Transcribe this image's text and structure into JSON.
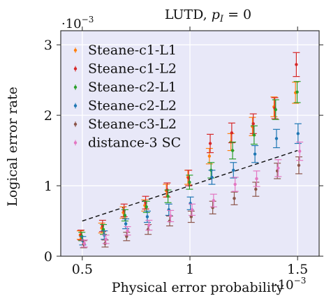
{
  "chart_data": {
    "type": "scatter",
    "title_text": "LUTD, ",
    "title_math": "p",
    "title_sub": "I",
    "title_rest": " = 0",
    "xlabel": "Physical error probability",
    "ylabel": "Logical error rate",
    "x_scale_label": "·10",
    "x_scale_exp": "−3",
    "y_scale_label": "·10",
    "y_scale_exp": "−3",
    "xlim": [
      0.4,
      1.6
    ],
    "ylim": [
      0,
      3.2
    ],
    "x_ticks": [
      {
        "v": 0.5,
        "label": "0.5"
      },
      {
        "v": 1.0,
        "label": "1"
      },
      {
        "v": 1.5,
        "label": "1.5"
      }
    ],
    "y_ticks": [
      {
        "v": 0,
        "label": "0"
      },
      {
        "v": 1,
        "label": "1"
      },
      {
        "v": 2,
        "label": "2"
      },
      {
        "v": 3,
        "label": "3"
      }
    ],
    "legend_position": "top-left",
    "grid": true,
    "colors": {
      "plot_background": "#e8e8f8",
      "grid": "#ffffff",
      "fit_line": "#111111"
    },
    "series": [
      {
        "name": "Steane-c1-L1",
        "color": "#ff7f0e",
        "x": [
          0.5,
          0.6,
          0.7,
          0.8,
          0.9,
          1.0,
          1.1,
          1.2,
          1.3,
          1.4,
          1.5
        ],
        "y": [
          0.3,
          0.4,
          0.62,
          0.72,
          0.93,
          1.12,
          1.42,
          1.62,
          1.84,
          2.12,
          2.32
        ],
        "err": [
          0.06,
          0.07,
          0.08,
          0.08,
          0.09,
          0.1,
          0.11,
          0.12,
          0.13,
          0.14,
          0.15
        ]
      },
      {
        "name": "Steane-c1-L2",
        "color": "#d62728",
        "x": [
          0.5,
          0.6,
          0.7,
          0.8,
          0.9,
          1.0,
          1.1,
          1.2,
          1.3,
          1.4,
          1.5
        ],
        "y": [
          0.3,
          0.43,
          0.65,
          0.76,
          0.94,
          1.11,
          1.6,
          1.75,
          1.88,
          2.1,
          2.72
        ],
        "err": [
          0.07,
          0.08,
          0.09,
          0.09,
          0.1,
          0.11,
          0.13,
          0.14,
          0.14,
          0.15,
          0.17
        ]
      },
      {
        "name": "Steane-c2-L1",
        "color": "#2ca02c",
        "x": [
          0.5,
          0.6,
          0.7,
          0.8,
          0.9,
          1.0,
          1.1,
          1.2,
          1.3,
          1.4,
          1.5
        ],
        "y": [
          0.28,
          0.38,
          0.58,
          0.7,
          0.85,
          1.05,
          1.22,
          1.5,
          1.72,
          2.08,
          2.33
        ],
        "err": [
          0.06,
          0.07,
          0.08,
          0.08,
          0.09,
          0.1,
          0.11,
          0.12,
          0.13,
          0.14,
          0.15
        ]
      },
      {
        "name": "Steane-c2-L2",
        "color": "#1f77b4",
        "x": [
          0.5,
          0.6,
          0.7,
          0.8,
          0.9,
          1.0,
          1.1,
          1.2,
          1.3,
          1.4,
          1.5
        ],
        "y": [
          0.22,
          0.3,
          0.46,
          0.56,
          0.66,
          0.75,
          1.12,
          1.22,
          1.45,
          1.67,
          1.74
        ],
        "err": [
          0.06,
          0.06,
          0.07,
          0.08,
          0.08,
          0.09,
          0.1,
          0.11,
          0.12,
          0.13,
          0.14
        ]
      },
      {
        "name": "Steane-c3-L2",
        "color": "#8c564b",
        "x": [
          0.5,
          0.6,
          0.7,
          0.8,
          0.9,
          1.0,
          1.1,
          1.2,
          1.3,
          1.4,
          1.5
        ],
        "y": [
          0.17,
          0.18,
          0.28,
          0.38,
          0.5,
          0.56,
          0.69,
          0.82,
          0.95,
          1.21,
          1.29
        ],
        "err": [
          0.05,
          0.05,
          0.06,
          0.07,
          0.07,
          0.08,
          0.09,
          0.09,
          0.1,
          0.11,
          0.12
        ]
      },
      {
        "name": "distance-3 SC",
        "color": "#e377c2",
        "x": [
          0.5,
          0.6,
          0.7,
          0.8,
          0.9,
          1.0,
          1.1,
          1.2,
          1.3,
          1.4,
          1.5
        ],
        "y": [
          0.18,
          0.24,
          0.36,
          0.44,
          0.57,
          0.66,
          0.79,
          1.02,
          1.1,
          1.25,
          1.49
        ],
        "err": [
          0.05,
          0.06,
          0.06,
          0.07,
          0.08,
          0.08,
          0.09,
          0.1,
          0.11,
          0.12,
          0.13
        ]
      }
    ],
    "fit_line": {
      "x": [
        0.5,
        1.5
      ],
      "y": [
        0.5,
        1.5
      ],
      "style": "dashed"
    }
  }
}
